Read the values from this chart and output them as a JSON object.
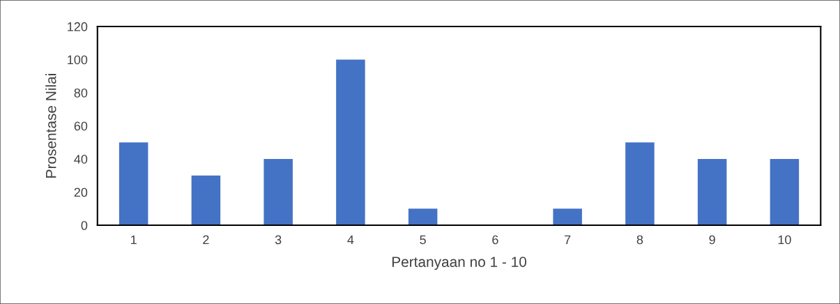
{
  "chart_data": {
    "type": "bar",
    "xlabel": "Pertanyaan no 1 - 10",
    "ylabel": "Prosentase Nilai",
    "categories": [
      "1",
      "2",
      "3",
      "4",
      "5",
      "6",
      "7",
      "8",
      "9",
      "10"
    ],
    "values": [
      50,
      30,
      40,
      100,
      10,
      0,
      10,
      50,
      40,
      40
    ],
    "color": "#4472c4",
    "ylim": [
      0,
      120
    ],
    "yticks": [
      0,
      20,
      40,
      60,
      80,
      100,
      120
    ],
    "grid": false,
    "legend": false
  }
}
